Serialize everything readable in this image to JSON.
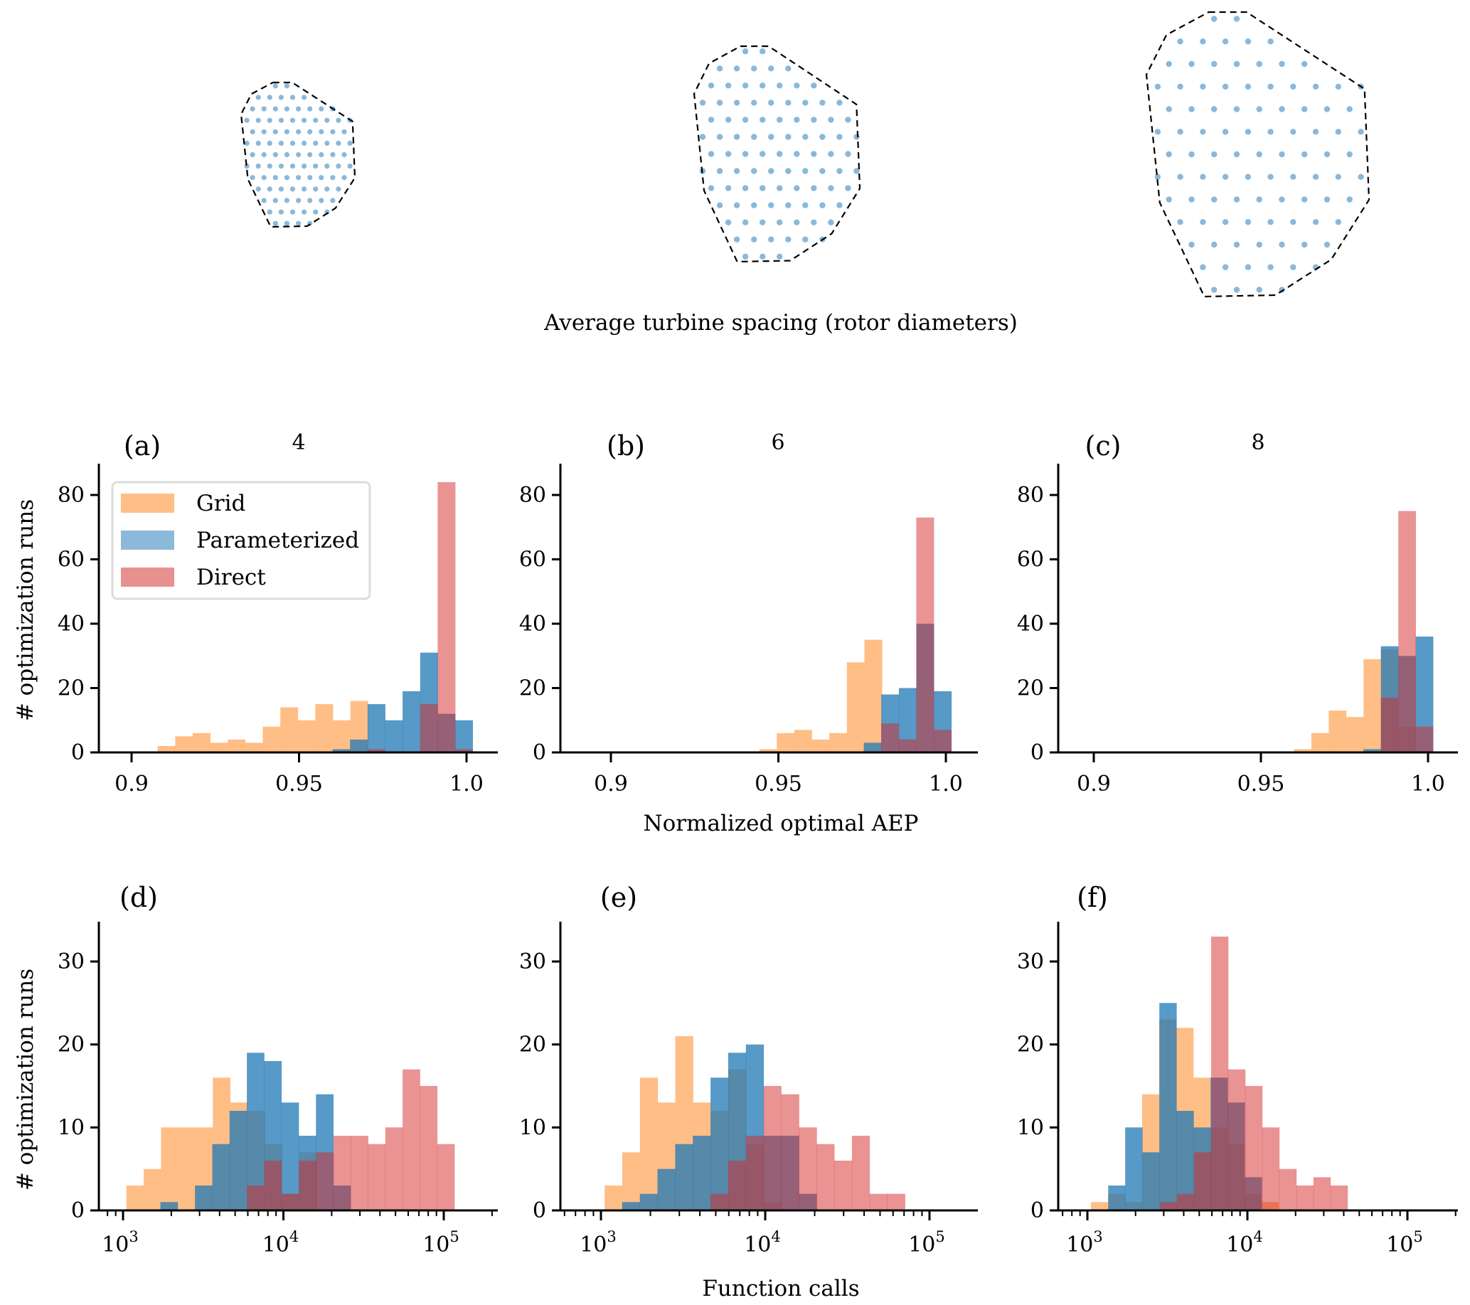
{
  "figure": {
    "top_caption": "Average turbine spacing (rotor diameters)",
    "farms": [
      {
        "spacing": "4"
      },
      {
        "spacing": "6"
      },
      {
        "spacing": "8"
      }
    ],
    "dot_color": "#8ab8da",
    "boundary_style": "dashed"
  },
  "legend": {
    "items": [
      {
        "label": "Grid",
        "color": "#ffbb80"
      },
      {
        "label": "Parameterized",
        "color": "#4f93c4"
      },
      {
        "label": "Direct",
        "color": "#e68a8a"
      }
    ]
  },
  "chart_data": [
    {
      "type": "bar",
      "panel": "(a)",
      "title": "4",
      "xlabel": "",
      "ylabel": "# optimization runs",
      "xscale": "linear",
      "xlim": [
        0.89,
        1.01
      ],
      "ylim": [
        0,
        88
      ],
      "xticks": [
        0.9,
        0.95,
        1.0
      ],
      "xtick_labels": [
        "0.9",
        "0.95",
        "1.0"
      ],
      "yticks": [
        0,
        20,
        40,
        60,
        80
      ],
      "ytick_labels": [
        "0",
        "20",
        "40",
        "60",
        "80"
      ],
      "legend": "upper-left",
      "series": [
        {
          "name": "Grid",
          "bin_start": 0.9078,
          "bin_width": 0.00523,
          "counts": [
            2,
            5,
            6,
            3,
            4,
            3,
            8,
            14,
            10,
            15,
            10,
            16
          ]
        },
        {
          "name": "Parameterized",
          "bin_start": 0.96,
          "bin_width": 0.00523,
          "counts": [
            1,
            4,
            15,
            10,
            19,
            31,
            12,
            10
          ]
        },
        {
          "name": "Direct",
          "bin_start": 0.96,
          "bin_width": 0.00523,
          "counts": [
            0,
            0,
            1,
            0,
            0,
            15,
            84,
            1
          ]
        }
      ]
    },
    {
      "type": "bar",
      "panel": "(b)",
      "title": "6",
      "xlabel": "Normalized optimal AEP",
      "ylabel": "",
      "xscale": "linear",
      "xlim": [
        0.89,
        1.01
      ],
      "ylim": [
        0,
        88
      ],
      "xticks": [
        0.9,
        0.95,
        1.0
      ],
      "xtick_labels": [
        "0.9",
        "0.95",
        "1.0"
      ],
      "yticks": [
        0,
        20,
        40,
        60,
        80
      ],
      "ytick_labels": [
        "0",
        "20",
        "40",
        "60",
        "80"
      ],
      "series": [
        {
          "name": "Grid",
          "bin_start": 0.9443,
          "bin_width": 0.00523,
          "counts": [
            1,
            6,
            7,
            4,
            6,
            28,
            35
          ]
        },
        {
          "name": "Parameterized",
          "bin_start": 0.9755,
          "bin_width": 0.00523,
          "counts": [
            3,
            18,
            20,
            40,
            19
          ]
        },
        {
          "name": "Direct",
          "bin_start": 0.9807,
          "bin_width": 0.00523,
          "counts": [
            9,
            4,
            73,
            7
          ]
        }
      ]
    },
    {
      "type": "bar",
      "panel": "(c)",
      "title": "8",
      "xlabel": "",
      "ylabel": "",
      "xscale": "linear",
      "xlim": [
        0.89,
        1.01
      ],
      "ylim": [
        0,
        88
      ],
      "xticks": [
        0.9,
        0.95,
        1.0
      ],
      "xtick_labels": [
        "0.9",
        "0.95",
        "1.0"
      ],
      "yticks": [
        0,
        20,
        40,
        60,
        80
      ],
      "ytick_labels": [
        "0",
        "20",
        "40",
        "60",
        "80"
      ],
      "series": [
        {
          "name": "Grid",
          "bin_start": 0.9599,
          "bin_width": 0.0052,
          "counts": [
            1,
            6,
            13,
            11,
            29,
            32,
            8
          ]
        },
        {
          "name": "Parameterized",
          "bin_start": 0.9807,
          "bin_width": 0.0052,
          "counts": [
            1,
            33,
            30,
            36
          ]
        },
        {
          "name": "Direct",
          "bin_start": 0.9859,
          "bin_width": 0.0052,
          "counts": [
            17,
            75,
            8
          ]
        }
      ]
    },
    {
      "type": "bar",
      "panel": "(d)",
      "title": "",
      "xlabel": "",
      "ylabel": "# optimization runs",
      "xscale": "log",
      "xlim_log10": [
        2.8,
        5.3
      ],
      "ylim": [
        0,
        35
      ],
      "xticks_log10": [
        3,
        4,
        5
      ],
      "xtick_labels": [
        "10^3",
        "10^4",
        "10^5"
      ],
      "yticks": [
        0,
        10,
        20,
        30
      ],
      "ytick_labels": [
        "0",
        "10",
        "20",
        "30"
      ],
      "series": [
        {
          "name": "Grid",
          "bin_start_log10": 3.021,
          "bin_width_log10": 0.1078,
          "counts": [
            3,
            5,
            10,
            10,
            10,
            16,
            13,
            12,
            8,
            2,
            7
          ]
        },
        {
          "name": "Parameterized",
          "bin_start_log10": 3.233,
          "bin_width_log10": 0.1078,
          "counts": [
            1,
            0,
            3,
            8,
            12,
            19,
            18,
            13,
            9,
            14,
            3
          ]
        },
        {
          "name": "Direct",
          "bin_start_log10": 3.773,
          "bin_width_log10": 0.1078,
          "counts": [
            3,
            6,
            2,
            6,
            7,
            9,
            9,
            8,
            10,
            17,
            15,
            8
          ]
        }
      ]
    },
    {
      "type": "bar",
      "panel": "(e)",
      "title": "",
      "xlabel": "Function calls",
      "ylabel": "",
      "xscale": "log",
      "xlim_log10": [
        2.8,
        5.3
      ],
      "ylim": [
        0,
        35
      ],
      "xticks_log10": [
        3,
        4,
        5
      ],
      "xtick_labels": [
        "10^3",
        "10^4",
        "10^5"
      ],
      "yticks": [
        0,
        10,
        20,
        30
      ],
      "ytick_labels": [
        "0",
        "10",
        "20",
        "30"
      ],
      "series": [
        {
          "name": "Grid",
          "bin_start_log10": 3.022,
          "bin_width_log10": 0.1076,
          "counts": [
            3,
            7,
            16,
            13,
            21,
            13,
            12,
            17,
            8,
            1
          ]
        },
        {
          "name": "Parameterized",
          "bin_start_log10": 3.129,
          "bin_width_log10": 0.1076,
          "counts": [
            1,
            2,
            5,
            8,
            9,
            16,
            19,
            20,
            9,
            9,
            2
          ]
        },
        {
          "name": "Direct",
          "bin_start_log10": 3.667,
          "bin_width_log10": 0.1076,
          "counts": [
            2,
            6,
            9,
            15,
            14,
            10,
            8,
            6,
            9,
            2,
            2
          ]
        }
      ]
    },
    {
      "type": "bar",
      "panel": "(f)",
      "title": "",
      "xlabel": "",
      "ylabel": "",
      "xscale": "log",
      "xlim_log10": [
        2.8,
        5.3
      ],
      "ylim": [
        0,
        35
      ],
      "xticks_log10": [
        3,
        4,
        5
      ],
      "xtick_labels": [
        "10^3",
        "10^4",
        "10^5"
      ],
      "yticks": [
        0,
        10,
        20,
        30
      ],
      "ytick_labels": [
        "0",
        "10",
        "20",
        "30"
      ],
      "series": [
        {
          "name": "Grid",
          "bin_start_log10": 3.022,
          "bin_width_log10": 0.1066,
          "counts": [
            1,
            2,
            1,
            14,
            23,
            22,
            16,
            10,
            8,
            2,
            1
          ]
        },
        {
          "name": "Parameterized",
          "bin_start_log10": 3.13,
          "bin_width_log10": 0.1066,
          "counts": [
            3,
            10,
            7,
            25,
            12,
            10,
            16,
            13,
            4
          ]
        },
        {
          "name": "Direct",
          "bin_start_log10": 3.453,
          "bin_width_log10": 0.1066,
          "counts": [
            1,
            2,
            7,
            33,
            17,
            15,
            10,
            5,
            3,
            4,
            3
          ]
        }
      ]
    }
  ]
}
